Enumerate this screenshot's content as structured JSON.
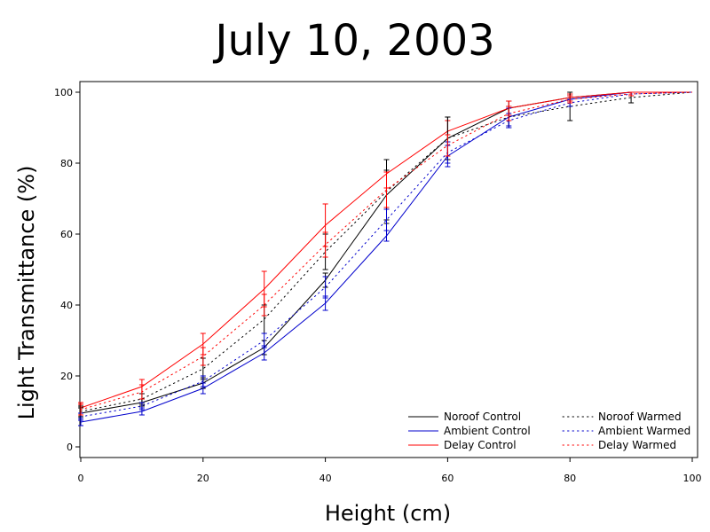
{
  "chart_data": {
    "type": "line",
    "title": "July 10, 2003",
    "xlabel": "Height (cm)",
    "ylabel": "Light Transmittance (%)",
    "xlim": [
      0,
      100
    ],
    "ylim": [
      -3,
      103
    ],
    "xticks": [
      0,
      20,
      40,
      60,
      80,
      100
    ],
    "yticks": [
      0,
      20,
      40,
      60,
      80,
      100
    ],
    "grid": false,
    "legend_position": "bottom-right",
    "series": [
      {
        "name": "Noroof Control",
        "color": "#000000",
        "dash": "solid",
        "x": [
          0,
          10,
          20,
          30,
          40,
          50,
          60,
          70,
          80,
          90,
          100
        ],
        "y": [
          9.5,
          12.5,
          18,
          28,
          47,
          71,
          87,
          95.5,
          98.5,
          100,
          100
        ],
        "err": [
          1.5,
          1,
          1.5,
          2,
          2,
          7,
          6,
          2,
          1,
          0,
          0
        ]
      },
      {
        "name": "Ambient Control",
        "color": "#0000cc",
        "dash": "solid",
        "x": [
          0,
          10,
          20,
          30,
          40,
          50,
          60,
          70,
          80,
          90,
          100
        ],
        "y": [
          7,
          10,
          16.5,
          26.5,
          40.5,
          59.5,
          82,
          93,
          98,
          100,
          100
        ],
        "err": [
          1,
          1,
          1.5,
          2,
          2,
          1.5,
          3,
          2.5,
          1,
          0,
          0
        ]
      },
      {
        "name": "Delay Control",
        "color": "#ff0000",
        "dash": "solid",
        "x": [
          0,
          10,
          20,
          30,
          40,
          50,
          60,
          70,
          80,
          90,
          100
        ],
        "y": [
          11,
          17,
          29,
          44.5,
          62.5,
          77,
          89,
          95.5,
          98.5,
          100,
          100
        ],
        "err": [
          1.5,
          2,
          3,
          5,
          6,
          4,
          3,
          2,
          1,
          0,
          0
        ]
      },
      {
        "name": "Noroof Warmed",
        "color": "#000000",
        "dash": "dotted",
        "x": [
          0,
          10,
          20,
          30,
          40,
          50,
          60,
          70,
          80,
          90,
          100
        ],
        "y": [
          10,
          13.5,
          22,
          36,
          55,
          72,
          87,
          93,
          96,
          98.5,
          100
        ],
        "err": [
          1.5,
          1.5,
          3,
          4,
          5,
          9,
          6,
          3,
          4,
          1.5,
          0
        ]
      },
      {
        "name": "Ambient Warmed",
        "color": "#0000cc",
        "dash": "dotted",
        "x": [
          0,
          10,
          20,
          30,
          40,
          50,
          60,
          70,
          80,
          90,
          100
        ],
        "y": [
          8.5,
          11.5,
          18.5,
          30,
          45,
          64,
          83,
          92,
          97,
          99.5,
          100
        ],
        "err": [
          1,
          1,
          1.5,
          2,
          3,
          3,
          3,
          2,
          1,
          0.5,
          0
        ]
      },
      {
        "name": "Delay Warmed",
        "color": "#ff0000",
        "dash": "dotted",
        "x": [
          0,
          10,
          20,
          30,
          40,
          50,
          60,
          70,
          80,
          90,
          100
        ],
        "y": [
          10.5,
          15.5,
          25.5,
          40,
          57,
          72.5,
          85,
          94,
          98,
          99.5,
          100
        ],
        "err": [
          1.5,
          2,
          2.5,
          3,
          3.5,
          5,
          3,
          2,
          1,
          0.5,
          0
        ]
      }
    ]
  }
}
